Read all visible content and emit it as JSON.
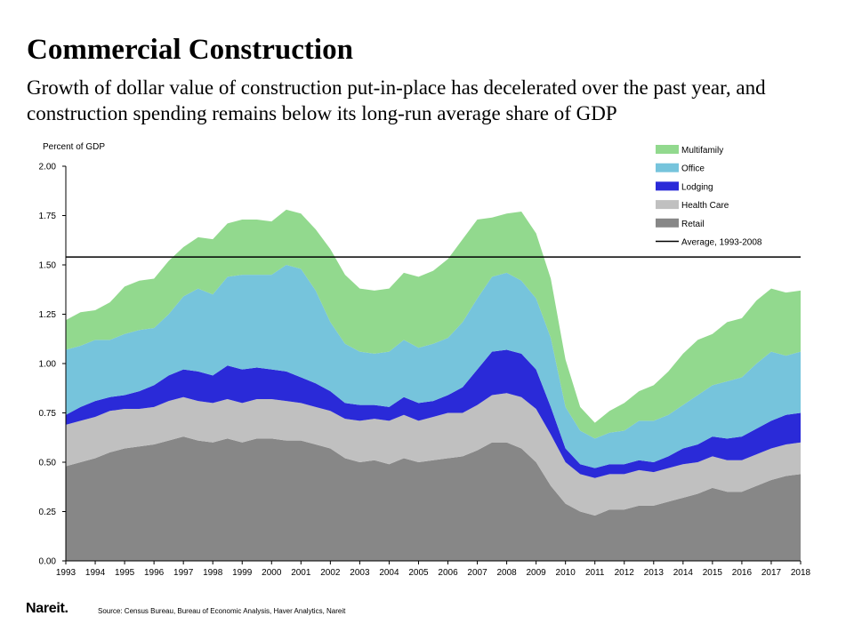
{
  "title": "Commercial Construction",
  "subtitle": "Growth of dollar value of construction put-in-place has decelerated over the past year, and construction spending remains below its long-run average share of GDP",
  "brand": "Nareit.",
  "source": "Source: Census Bureau, Bureau of Economic Analysis, Haver Analytics, Nareit",
  "chart_data": {
    "type": "area",
    "stacked": true,
    "ylabel": "Percent of GDP",
    "ylim": [
      0,
      2
    ],
    "yticks": [
      "0.00",
      "0.25",
      "0.50",
      "0.75",
      "1.00",
      "1.25",
      "1.50",
      "1.75",
      "2.00"
    ],
    "xlim": [
      1993,
      2018
    ],
    "xticks": [
      "1993",
      "1994",
      "1995",
      "1996",
      "1997",
      "1998",
      "1999",
      "2000",
      "2001",
      "2002",
      "2003",
      "2004",
      "2005",
      "2006",
      "2007",
      "2008",
      "2009",
      "2010",
      "2011",
      "2012",
      "2013",
      "2014",
      "2015",
      "2016",
      "2017",
      "2018"
    ],
    "legend_position": "top-right",
    "average": {
      "name": "Average, 1993-2008",
      "value": 1.54,
      "color": "#000000"
    },
    "x": [
      1993,
      1993.5,
      1994,
      1994.5,
      1995,
      1995.5,
      1996,
      1996.5,
      1997,
      1997.5,
      1998,
      1998.5,
      1999,
      1999.5,
      2000,
      2000.5,
      2001,
      2001.5,
      2002,
      2002.5,
      2003,
      2003.5,
      2004,
      2004.5,
      2005,
      2005.5,
      2006,
      2006.5,
      2007,
      2007.5,
      2008,
      2008.5,
      2009,
      2009.5,
      2010,
      2010.5,
      2011,
      2011.5,
      2012,
      2012.5,
      2013,
      2013.5,
      2014,
      2014.5,
      2015,
      2015.5,
      2016,
      2016.5,
      2017,
      2017.5,
      2018
    ],
    "series": [
      {
        "name": "Retail",
        "color": "#878787",
        "values": [
          0.48,
          0.5,
          0.52,
          0.55,
          0.57,
          0.58,
          0.59,
          0.61,
          0.63,
          0.61,
          0.6,
          0.62,
          0.6,
          0.62,
          0.62,
          0.61,
          0.61,
          0.59,
          0.57,
          0.52,
          0.5,
          0.51,
          0.49,
          0.52,
          0.5,
          0.51,
          0.52,
          0.53,
          0.56,
          0.6,
          0.6,
          0.57,
          0.5,
          0.38,
          0.29,
          0.25,
          0.23,
          0.26,
          0.26,
          0.28,
          0.28,
          0.3,
          0.32,
          0.34,
          0.37,
          0.35,
          0.35,
          0.38,
          0.41,
          0.43,
          0.44
        ]
      },
      {
        "name": "Health Care",
        "color": "#c0c0c0",
        "values": [
          0.21,
          0.21,
          0.21,
          0.21,
          0.2,
          0.19,
          0.19,
          0.2,
          0.2,
          0.2,
          0.2,
          0.2,
          0.2,
          0.2,
          0.2,
          0.2,
          0.19,
          0.19,
          0.19,
          0.2,
          0.21,
          0.21,
          0.22,
          0.22,
          0.21,
          0.22,
          0.23,
          0.22,
          0.23,
          0.24,
          0.25,
          0.26,
          0.27,
          0.26,
          0.21,
          0.19,
          0.19,
          0.18,
          0.18,
          0.18,
          0.17,
          0.17,
          0.17,
          0.16,
          0.16,
          0.16,
          0.16,
          0.16,
          0.16,
          0.16,
          0.16
        ]
      },
      {
        "name": "Lodging",
        "color": "#2a2ad8",
        "values": [
          0.05,
          0.07,
          0.08,
          0.07,
          0.07,
          0.09,
          0.11,
          0.13,
          0.14,
          0.15,
          0.14,
          0.17,
          0.17,
          0.16,
          0.15,
          0.15,
          0.13,
          0.12,
          0.1,
          0.08,
          0.08,
          0.07,
          0.07,
          0.09,
          0.09,
          0.08,
          0.09,
          0.13,
          0.18,
          0.22,
          0.22,
          0.22,
          0.2,
          0.14,
          0.07,
          0.05,
          0.05,
          0.05,
          0.05,
          0.05,
          0.05,
          0.06,
          0.08,
          0.09,
          0.1,
          0.11,
          0.12,
          0.13,
          0.14,
          0.15,
          0.15
        ]
      },
      {
        "name": "Office",
        "color": "#76c4dc",
        "values": [
          0.33,
          0.31,
          0.31,
          0.29,
          0.31,
          0.31,
          0.29,
          0.31,
          0.37,
          0.42,
          0.41,
          0.45,
          0.48,
          0.47,
          0.48,
          0.54,
          0.55,
          0.47,
          0.35,
          0.3,
          0.27,
          0.26,
          0.28,
          0.29,
          0.28,
          0.29,
          0.29,
          0.33,
          0.36,
          0.38,
          0.39,
          0.37,
          0.36,
          0.35,
          0.21,
          0.17,
          0.15,
          0.16,
          0.17,
          0.2,
          0.21,
          0.21,
          0.22,
          0.25,
          0.26,
          0.29,
          0.3,
          0.33,
          0.35,
          0.3,
          0.31
        ]
      },
      {
        "name": "Multifamily",
        "color": "#92d98e",
        "values": [
          0.15,
          0.17,
          0.15,
          0.19,
          0.24,
          0.25,
          0.25,
          0.27,
          0.25,
          0.26,
          0.28,
          0.27,
          0.28,
          0.28,
          0.27,
          0.28,
          0.28,
          0.31,
          0.37,
          0.35,
          0.32,
          0.32,
          0.32,
          0.34,
          0.36,
          0.37,
          0.4,
          0.42,
          0.4,
          0.3,
          0.3,
          0.35,
          0.33,
          0.3,
          0.24,
          0.12,
          0.08,
          0.11,
          0.14,
          0.15,
          0.18,
          0.22,
          0.26,
          0.28,
          0.26,
          0.3,
          0.3,
          0.32,
          0.32,
          0.32,
          0.31
        ]
      }
    ]
  }
}
